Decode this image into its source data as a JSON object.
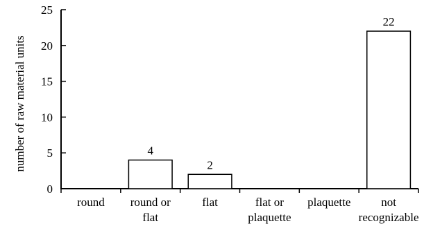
{
  "chart_data": {
    "type": "bar",
    "title": "",
    "xlabel": "",
    "ylabel": "number of raw material units",
    "categories": [
      [
        "round"
      ],
      [
        "round or",
        "flat"
      ],
      [
        "flat"
      ],
      [
        "flat or",
        "plaquette"
      ],
      [
        "plaquette"
      ],
      [
        "not",
        "recognizable"
      ]
    ],
    "values": [
      0,
      4,
      2,
      0,
      0,
      22
    ],
    "data_labels": [
      "",
      "4",
      "2",
      "",
      "",
      "22"
    ],
    "ylim": [
      0,
      25
    ],
    "yticks": [
      "0",
      "5",
      "10",
      "15",
      "20",
      "25"
    ],
    "grid": false,
    "legend": "none",
    "colors": {
      "bar_fill": "#ffffff",
      "bar_stroke": "#000000",
      "axis": "#000000"
    }
  }
}
